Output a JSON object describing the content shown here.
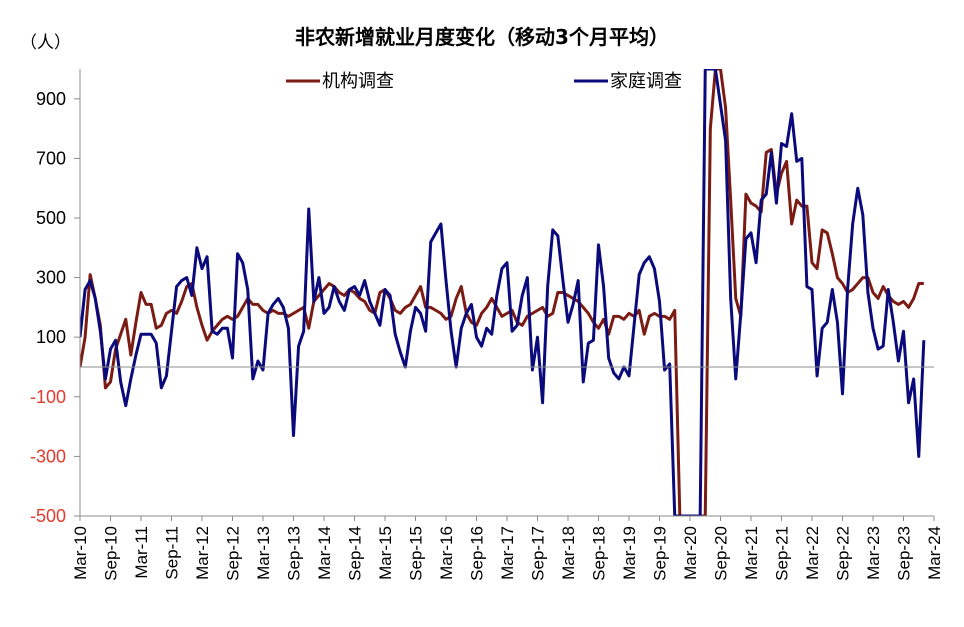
{
  "chart_data": {
    "type": "line",
    "title": "非农新增就业月度变化（移动3个月平均）",
    "unit_label": "（人）",
    "ylim": [
      -500,
      1000
    ],
    "yticks": [
      900,
      700,
      500,
      300,
      100,
      -100,
      -300,
      -500
    ],
    "ytick_labels": [
      "900",
      "700",
      "500",
      "300",
      "100",
      "-100",
      "-300",
      "-500"
    ],
    "negative_tick_color": "#e23b2e",
    "positive_tick_color": "#000000",
    "x_start_month": "Mar-10",
    "x_labels": [
      "Mar-10",
      "Sep-10",
      "Mar-11",
      "Sep-11",
      "Mar-12",
      "Sep-12",
      "Mar-13",
      "Sep-13",
      "Mar-14",
      "Sep-14",
      "Mar-15",
      "Sep-15",
      "Mar-16",
      "Sep-16",
      "Mar-17",
      "Sep-17",
      "Mar-18",
      "Sep-18",
      "Mar-19",
      "Sep-19",
      "Mar-20",
      "Sep-20",
      "Mar-21",
      "Sep-21",
      "Mar-22",
      "Sep-22",
      "Mar-23",
      "Sep-23",
      "Mar-24"
    ],
    "legend_position": "top",
    "grid": false,
    "series": [
      {
        "name": "机构调查",
        "color": "#7b1c14",
        "values": [
          0,
          100,
          310,
          230,
          140,
          -70,
          -50,
          60,
          110,
          160,
          40,
          150,
          250,
          210,
          210,
          130,
          140,
          180,
          190,
          180,
          220,
          270,
          280,
          200,
          140,
          90,
          120,
          140,
          160,
          170,
          160,
          170,
          200,
          230,
          210,
          210,
          190,
          180,
          190,
          180,
          180,
          170,
          180,
          190,
          200,
          130,
          220,
          240,
          260,
          280,
          270,
          250,
          240,
          260,
          250,
          230,
          220,
          190,
          180,
          250,
          260,
          230,
          190,
          180,
          200,
          210,
          240,
          270,
          200,
          200,
          190,
          180,
          160,
          170,
          230,
          270,
          180,
          150,
          140,
          180,
          200,
          230,
          200,
          170,
          180,
          190,
          150,
          140,
          170,
          180,
          190,
          200,
          170,
          180,
          250,
          250,
          240,
          230,
          220,
          200,
          180,
          150,
          130,
          160,
          110,
          170,
          170,
          160,
          180,
          170,
          190,
          110,
          170,
          180,
          170,
          170,
          160,
          190,
          -500,
          -500,
          -500,
          -500,
          -500,
          -500,
          800,
          1000,
          1000,
          870,
          560,
          230,
          170,
          580,
          550,
          540,
          520,
          720,
          730,
          580,
          650,
          690,
          480,
          560,
          540,
          540,
          350,
          330,
          460,
          450,
          380,
          300,
          280,
          250,
          260,
          280,
          300,
          300,
          250,
          230,
          270,
          240,
          220,
          210,
          220,
          200,
          230,
          280,
          280
        ]
      },
      {
        "name": "家庭调查",
        "color": "#0a0a7c",
        "values": [
          100,
          260,
          290,
          230,
          120,
          -40,
          60,
          90,
          -50,
          -130,
          -40,
          40,
          110,
          110,
          110,
          80,
          -70,
          -30,
          120,
          270,
          290,
          300,
          240,
          400,
          330,
          370,
          120,
          110,
          130,
          130,
          30,
          380,
          350,
          260,
          -40,
          20,
          -10,
          180,
          210,
          230,
          200,
          130,
          -230,
          70,
          120,
          530,
          220,
          300,
          180,
          200,
          270,
          220,
          190,
          260,
          270,
          240,
          290,
          220,
          180,
          140,
          260,
          240,
          110,
          50,
          0,
          120,
          200,
          180,
          120,
          420,
          450,
          480,
          290,
          120,
          0,
          130,
          180,
          210,
          100,
          70,
          130,
          110,
          240,
          330,
          350,
          120,
          140,
          240,
          300,
          -10,
          100,
          -120,
          270,
          460,
          440,
          290,
          150,
          210,
          290,
          -50,
          80,
          90,
          410,
          270,
          30,
          -20,
          -40,
          0,
          -30,
          140,
          310,
          350,
          370,
          330,
          220,
          -10,
          10,
          -500,
          -500,
          -500,
          -500,
          -500,
          -500,
          1000,
          1000,
          1000,
          880,
          760,
          230,
          -40,
          180,
          430,
          450,
          350,
          560,
          580,
          720,
          550,
          750,
          740,
          850,
          690,
          700,
          270,
          260,
          -30,
          130,
          150,
          260,
          150,
          -90,
          260,
          480,
          600,
          510,
          250,
          130,
          60,
          70,
          260,
          150,
          20,
          120,
          -120,
          -40,
          -300,
          90
        ]
      }
    ]
  }
}
